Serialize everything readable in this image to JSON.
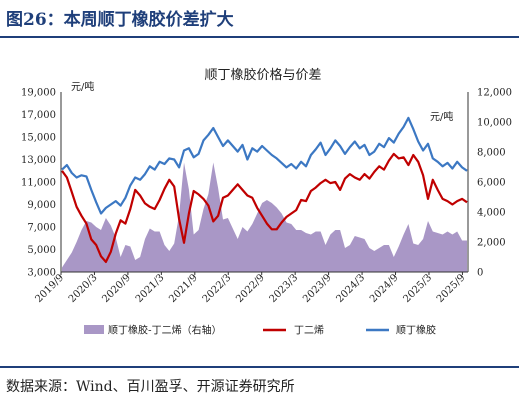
{
  "figure": {
    "title": "图26：本周顺丁橡胶价差扩大",
    "source": "数据来源：Wind、百川盈孚、开源证券研究所"
  },
  "chart_data": {
    "type": "line",
    "title": "顺丁橡胶价格与价差",
    "left_unit": "元/吨",
    "right_unit": "元/吨",
    "ylim_left": [
      3000,
      19000
    ],
    "ylim_right": [
      0,
      12000
    ],
    "yticks_left": [
      "19,000",
      "17,000",
      "15,000",
      "13,000",
      "11,000",
      "9,000",
      "7,000",
      "5,000",
      "3,000"
    ],
    "yticks_right": [
      "12,000",
      "10,000",
      "8,000",
      "6,000",
      "4,000",
      "2,000",
      "0"
    ],
    "xticks": [
      "2019/9",
      "2020/3",
      "2020/9",
      "2021/3",
      "2021/9",
      "2022/3",
      "2022/9",
      "2023/3",
      "2023/9",
      "2024/3",
      "2024/9",
      "2025/3",
      "2025/9"
    ],
    "x_start": "2019/9",
    "x_end": "2025/10",
    "legend": [
      "顺丁橡胶-丁二烯（右轴）",
      "丁二烯",
      "顺丁橡胶"
    ],
    "legend_position": "bottom",
    "colors": {
      "spread": "#a997c6",
      "butadiene": "#c00000",
      "br": "#3c78c3"
    },
    "series": [
      {
        "name": "顺丁橡胶",
        "axis": "left",
        "values": [
          12100,
          12500,
          11800,
          11400,
          11600,
          11500,
          10300,
          9200,
          8200,
          8700,
          9000,
          9300,
          8900,
          9600,
          10700,
          11400,
          11200,
          11700,
          12400,
          12100,
          12800,
          12600,
          13100,
          13000,
          12300,
          13800,
          14000,
          13200,
          13500,
          14700,
          15200,
          15800,
          15000,
          14200,
          14700,
          14200,
          13700,
          14300,
          13000,
          14000,
          13700,
          14200,
          13800,
          13400,
          13100,
          12700,
          12300,
          12600,
          12200,
          12800,
          12400,
          13400,
          13900,
          14500,
          13400,
          14000,
          14700,
          14200,
          13500,
          14100,
          14600,
          14000,
          14300,
          13400,
          13700,
          14400,
          14100,
          14900,
          14500,
          15300,
          15900,
          16700,
          15700,
          14600,
          13800,
          14400,
          13100,
          12800,
          12400,
          12700,
          12200,
          12800,
          12300,
          12000
        ]
      },
      {
        "name": "丁二烯",
        "axis": "left",
        "values": [
          12000,
          11400,
          10100,
          8800,
          8000,
          7300,
          5900,
          5400,
          4400,
          3900,
          4800,
          6400,
          7600,
          7300,
          8600,
          10300,
          9800,
          9100,
          8800,
          8600,
          9400,
          10400,
          11200,
          10600,
          7700,
          5600,
          8200,
          10200,
          9900,
          9500,
          8900,
          7500,
          8000,
          9600,
          9800,
          10300,
          10800,
          10300,
          9800,
          9600,
          8700,
          8000,
          7300,
          6800,
          6800,
          7400,
          7900,
          8200,
          8500,
          9400,
          9300,
          10200,
          10500,
          10900,
          11200,
          10900,
          11000,
          10300,
          11300,
          11700,
          11400,
          11200,
          11700,
          11300,
          11900,
          12400,
          12100,
          12900,
          13500,
          13100,
          13200,
          12500,
          13400,
          12800,
          11600,
          9500,
          11200,
          10300,
          9500,
          9300,
          9000,
          9300,
          9500,
          9200
        ]
      },
      {
        "name": "顺丁橡胶-丁二烯（右轴）",
        "axis": "right",
        "values": [
          300,
          800,
          1300,
          2000,
          2800,
          3400,
          3300,
          3000,
          2800,
          3600,
          3100,
          2300,
          1000,
          1800,
          1700,
          800,
          1000,
          2200,
          2900,
          2700,
          2700,
          1800,
          1400,
          1900,
          3800,
          7300,
          5500,
          2500,
          2800,
          4200,
          5200,
          7300,
          5600,
          3500,
          3600,
          2900,
          2200,
          3000,
          2700,
          3200,
          3900,
          4600,
          4800,
          4600,
          4300,
          3900,
          3300,
          3200,
          2800,
          2800,
          2600,
          2500,
          2700,
          2700,
          1800,
          2500,
          2800,
          2800,
          1600,
          1800,
          2400,
          2300,
          2200,
          1600,
          1400,
          1600,
          1800,
          1800,
          1000,
          1700,
          2500,
          3200,
          1900,
          1800,
          2200,
          3400,
          2700,
          2600,
          2500,
          2700,
          2500,
          2700,
          2100,
          2100
        ]
      }
    ]
  }
}
